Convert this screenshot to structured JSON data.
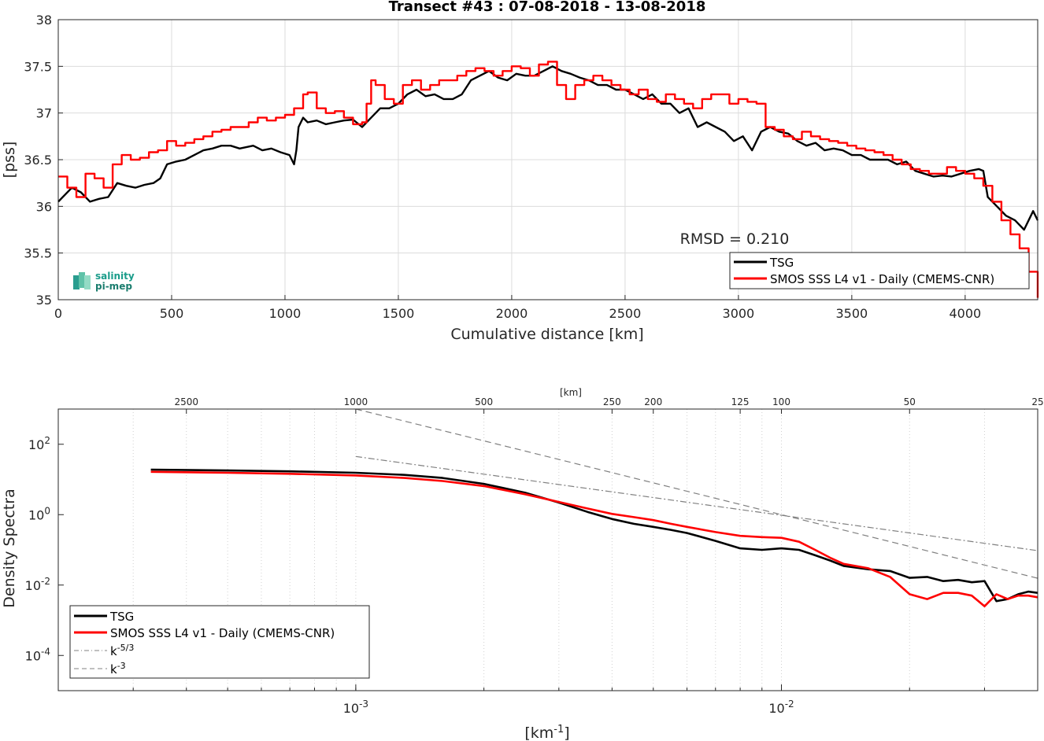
{
  "logo": {
    "line1": "salinity",
    "line2": "pi-mep"
  },
  "chart_data": [
    {
      "type": "line",
      "title": "Transect #43 : 07-08-2018 - 13-08-2018",
      "xlabel": "Cumulative distance [km]",
      "ylabel": "[pss]",
      "xlim": [
        0,
        4320
      ],
      "ylim": [
        35,
        38
      ],
      "xticks": [
        0,
        500,
        1000,
        1500,
        2000,
        2500,
        3000,
        3500,
        4000
      ],
      "yticks": [
        35,
        35.5,
        36,
        36.5,
        37,
        37.5,
        38
      ],
      "ytick_labels": [
        "35",
        "35.5",
        "36",
        "36.5",
        "37",
        "37.5",
        "38"
      ],
      "grid": true,
      "annotation": "RMSD = 0.210",
      "legend_position": "bottom-right",
      "series": [
        {
          "name": "TSG",
          "color": "#000000",
          "x": [
            0,
            60,
            100,
            140,
            180,
            220,
            260,
            300,
            340,
            380,
            420,
            450,
            480,
            520,
            560,
            600,
            640,
            680,
            720,
            760,
            800,
            860,
            900,
            940,
            980,
            1020,
            1040,
            1050,
            1060,
            1080,
            1100,
            1140,
            1180,
            1220,
            1260,
            1300,
            1340,
            1380,
            1420,
            1460,
            1500,
            1540,
            1580,
            1620,
            1660,
            1700,
            1740,
            1780,
            1820,
            1860,
            1900,
            1940,
            1980,
            2020,
            2060,
            2100,
            2140,
            2180,
            2220,
            2260,
            2300,
            2340,
            2380,
            2420,
            2460,
            2500,
            2540,
            2580,
            2620,
            2660,
            2700,
            2740,
            2780,
            2820,
            2860,
            2900,
            2940,
            2980,
            3020,
            3060,
            3100,
            3140,
            3180,
            3220,
            3260,
            3300,
            3340,
            3380,
            3420,
            3460,
            3500,
            3540,
            3580,
            3620,
            3660,
            3700,
            3740,
            3780,
            3820,
            3860,
            3900,
            3940,
            3980,
            4020,
            4060,
            4080,
            4100,
            4140,
            4180,
            4220,
            4260,
            4300,
            4320
          ],
          "y": [
            36.05,
            36.2,
            36.15,
            36.05,
            36.08,
            36.1,
            36.25,
            36.22,
            36.2,
            36.23,
            36.25,
            36.3,
            36.45,
            36.48,
            36.5,
            36.55,
            36.6,
            36.62,
            36.65,
            36.65,
            36.62,
            36.65,
            36.6,
            36.62,
            36.58,
            36.55,
            36.45,
            36.6,
            36.85,
            36.95,
            36.9,
            36.92,
            36.88,
            36.9,
            36.92,
            36.93,
            36.85,
            36.95,
            37.05,
            37.05,
            37.1,
            37.2,
            37.25,
            37.18,
            37.2,
            37.15,
            37.15,
            37.2,
            37.35,
            37.4,
            37.45,
            37.38,
            37.35,
            37.42,
            37.4,
            37.4,
            37.45,
            37.5,
            37.45,
            37.42,
            37.38,
            37.35,
            37.3,
            37.3,
            37.25,
            37.25,
            37.2,
            37.15,
            37.2,
            37.1,
            37.1,
            37.0,
            37.05,
            36.85,
            36.9,
            36.85,
            36.8,
            36.7,
            36.75,
            36.6,
            36.8,
            36.85,
            36.8,
            36.78,
            36.7,
            36.65,
            36.68,
            36.6,
            36.62,
            36.6,
            36.55,
            36.55,
            36.5,
            36.5,
            36.5,
            36.45,
            36.48,
            36.38,
            36.35,
            36.32,
            36.33,
            36.32,
            36.35,
            36.38,
            36.4,
            36.38,
            36.1,
            36.0,
            35.9,
            35.85,
            35.75,
            35.95,
            35.85
          ]
        },
        {
          "name": "SMOS SSS L4 v1 - Daily (CMEMS-CNR)",
          "color": "#ff0000",
          "x": [
            0,
            40,
            80,
            120,
            160,
            200,
            240,
            280,
            320,
            360,
            400,
            440,
            480,
            520,
            560,
            600,
            640,
            680,
            720,
            760,
            800,
            840,
            880,
            920,
            960,
            1000,
            1040,
            1080,
            1100,
            1140,
            1180,
            1220,
            1260,
            1300,
            1340,
            1360,
            1380,
            1400,
            1440,
            1480,
            1520,
            1560,
            1600,
            1640,
            1680,
            1720,
            1760,
            1800,
            1840,
            1880,
            1920,
            1960,
            2000,
            2040,
            2080,
            2120,
            2160,
            2200,
            2240,
            2280,
            2320,
            2360,
            2400,
            2440,
            2480,
            2520,
            2560,
            2600,
            2640,
            2680,
            2720,
            2760,
            2800,
            2840,
            2880,
            2920,
            2960,
            3000,
            3040,
            3080,
            3120,
            3160,
            3200,
            3240,
            3280,
            3320,
            3360,
            3400,
            3440,
            3480,
            3520,
            3560,
            3600,
            3640,
            3680,
            3720,
            3760,
            3800,
            3840,
            3880,
            3920,
            3960,
            4000,
            4040,
            4080,
            4120,
            4160,
            4200,
            4240,
            4280,
            4320
          ],
          "y": [
            36.32,
            36.2,
            36.1,
            36.35,
            36.3,
            36.2,
            36.45,
            36.55,
            36.5,
            36.52,
            36.58,
            36.6,
            36.7,
            36.65,
            36.68,
            36.72,
            36.75,
            36.8,
            36.82,
            36.85,
            36.85,
            36.9,
            36.95,
            36.92,
            36.95,
            36.98,
            37.05,
            37.2,
            37.22,
            37.05,
            37.0,
            37.02,
            36.95,
            36.88,
            36.9,
            37.1,
            37.35,
            37.3,
            37.15,
            37.1,
            37.3,
            37.35,
            37.25,
            37.3,
            37.35,
            37.35,
            37.4,
            37.45,
            37.48,
            37.45,
            37.4,
            37.45,
            37.5,
            37.48,
            37.4,
            37.52,
            37.55,
            37.3,
            37.15,
            37.3,
            37.35,
            37.4,
            37.35,
            37.3,
            37.25,
            37.2,
            37.25,
            37.15,
            37.12,
            37.2,
            37.15,
            37.1,
            37.05,
            37.15,
            37.2,
            37.2,
            37.1,
            37.15,
            37.12,
            37.1,
            36.85,
            36.82,
            36.75,
            36.72,
            36.8,
            36.75,
            36.72,
            36.7,
            36.68,
            36.65,
            36.62,
            36.6,
            36.58,
            36.55,
            36.5,
            36.45,
            36.4,
            36.38,
            36.35,
            36.35,
            36.42,
            36.38,
            36.35,
            36.3,
            36.22,
            36.05,
            35.85,
            35.7,
            35.55,
            35.3,
            35.02
          ]
        }
      ]
    },
    {
      "type": "line",
      "xlabel": "[km-1]",
      "ylabel": "Density Spectra",
      "x_scale": "log",
      "y_scale": "log",
      "xlim": [
        0.0002,
        0.04
      ],
      "ylim": [
        1e-05,
        1000
      ],
      "xtick_labels": [
        {
          "base": "10",
          "exp": "-3",
          "value": 0.001
        },
        {
          "base": "10",
          "exp": "-2",
          "value": 0.01
        }
      ],
      "ytick_labels": [
        {
          "base": "10",
          "exp": "2",
          "value": 100
        },
        {
          "base": "10",
          "exp": "0",
          "value": 1
        },
        {
          "base": "10",
          "exp": "-2",
          "value": 0.01
        },
        {
          "base": "10",
          "exp": "-4",
          "value": 0.0001
        }
      ],
      "top_axis_label": "[km]",
      "top_axis_ticks": [
        "2500",
        "1000",
        "500",
        "250",
        "200",
        "125",
        "100",
        "50",
        "25"
      ],
      "legend_position": "bottom-left",
      "grid": "minor-x-dotted",
      "series": [
        {
          "name": "TSG",
          "color": "#000000",
          "x": [
            0.00033,
            0.0005,
            0.0007,
            0.001,
            0.0013,
            0.0016,
            0.002,
            0.0025,
            0.003,
            0.0035,
            0.004,
            0.0045,
            0.005,
            0.0055,
            0.006,
            0.007,
            0.008,
            0.009,
            0.01,
            0.011,
            0.012,
            0.013,
            0.014,
            0.016,
            0.018,
            0.02,
            0.022,
            0.024,
            0.026,
            0.028,
            0.03,
            0.032,
            0.034,
            0.036,
            0.038,
            0.04
          ],
          "y": [
            19,
            18,
            17,
            15.5,
            13.5,
            11,
            7.5,
            4.2,
            2.2,
            1.2,
            0.75,
            0.55,
            0.45,
            0.37,
            0.3,
            0.18,
            0.11,
            0.1,
            0.11,
            0.1,
            0.07,
            0.05,
            0.035,
            0.028,
            0.025,
            0.016,
            0.017,
            0.013,
            0.014,
            0.012,
            0.013,
            0.0035,
            0.004,
            0.0055,
            0.0065,
            0.006
          ]
        },
        {
          "name": "SMOS SSS L4 v1 - Daily (CMEMS-CNR)",
          "color": "#ff0000",
          "x": [
            0.00033,
            0.0005,
            0.0007,
            0.001,
            0.0013,
            0.0016,
            0.002,
            0.0025,
            0.003,
            0.0035,
            0.004,
            0.0045,
            0.005,
            0.0055,
            0.006,
            0.007,
            0.008,
            0.009,
            0.01,
            0.011,
            0.012,
            0.013,
            0.014,
            0.016,
            0.018,
            0.02,
            0.022,
            0.024,
            0.026,
            0.028,
            0.03,
            0.032,
            0.034,
            0.036,
            0.038,
            0.04
          ],
          "y": [
            16.5,
            15.5,
            14.5,
            13,
            11,
            9,
            6.5,
            3.8,
            2.3,
            1.5,
            1.05,
            0.85,
            0.7,
            0.55,
            0.45,
            0.32,
            0.25,
            0.23,
            0.22,
            0.17,
            0.1,
            0.06,
            0.04,
            0.03,
            0.017,
            0.0055,
            0.004,
            0.006,
            0.006,
            0.005,
            0.0025,
            0.0055,
            0.004,
            0.005,
            0.005,
            0.0045
          ]
        },
        {
          "name": "k-5/3",
          "style": "dash-dot",
          "color": "#808080",
          "x": [
            0.001,
            0.04
          ],
          "y": [
            45.0,
            0.095
          ]
        },
        {
          "name": "k-3",
          "style": "dashed",
          "color": "#808080",
          "x": [
            0.001,
            0.04
          ],
          "y": [
            1000.0,
            0.0156
          ]
        }
      ]
    }
  ]
}
